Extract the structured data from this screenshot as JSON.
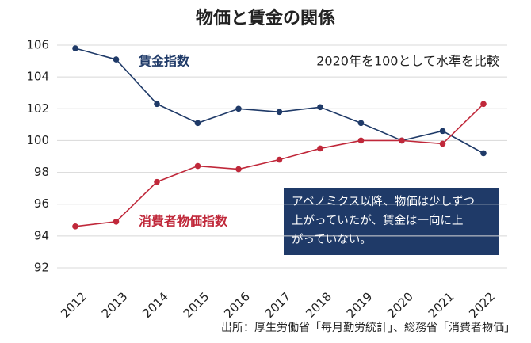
{
  "chart_data": {
    "type": "line",
    "title": "物価と賃金の関係",
    "subtitle": "2020年を100として水準を比較",
    "annotation": [
      "アベノミクス以降、物価は少しずつ",
      "上がっていたが、賃金は一向に上",
      "がっていない。"
    ],
    "source": "出所：厚生労働省「毎月勤労統計」、総務省「消費者物価」",
    "categories": [
      "2012",
      "2013",
      "2014",
      "2015",
      "2016",
      "2017",
      "2018",
      "2019",
      "2020",
      "2021",
      "2022"
    ],
    "series": [
      {
        "name": "賃金指数",
        "color": "#1f3a68",
        "values": [
          105.8,
          105.1,
          102.3,
          101.1,
          102.0,
          101.8,
          102.1,
          101.1,
          100.0,
          100.6,
          99.2
        ]
      },
      {
        "name": "消費者物価指数",
        "color": "#c0283a",
        "values": [
          94.6,
          94.9,
          97.4,
          98.4,
          98.2,
          98.8,
          99.5,
          100.0,
          100.0,
          99.8,
          102.3
        ]
      }
    ],
    "ylim": [
      92,
      106
    ],
    "yticks": [
      92,
      94,
      96,
      98,
      100,
      102,
      104,
      106
    ],
    "grid": true
  }
}
